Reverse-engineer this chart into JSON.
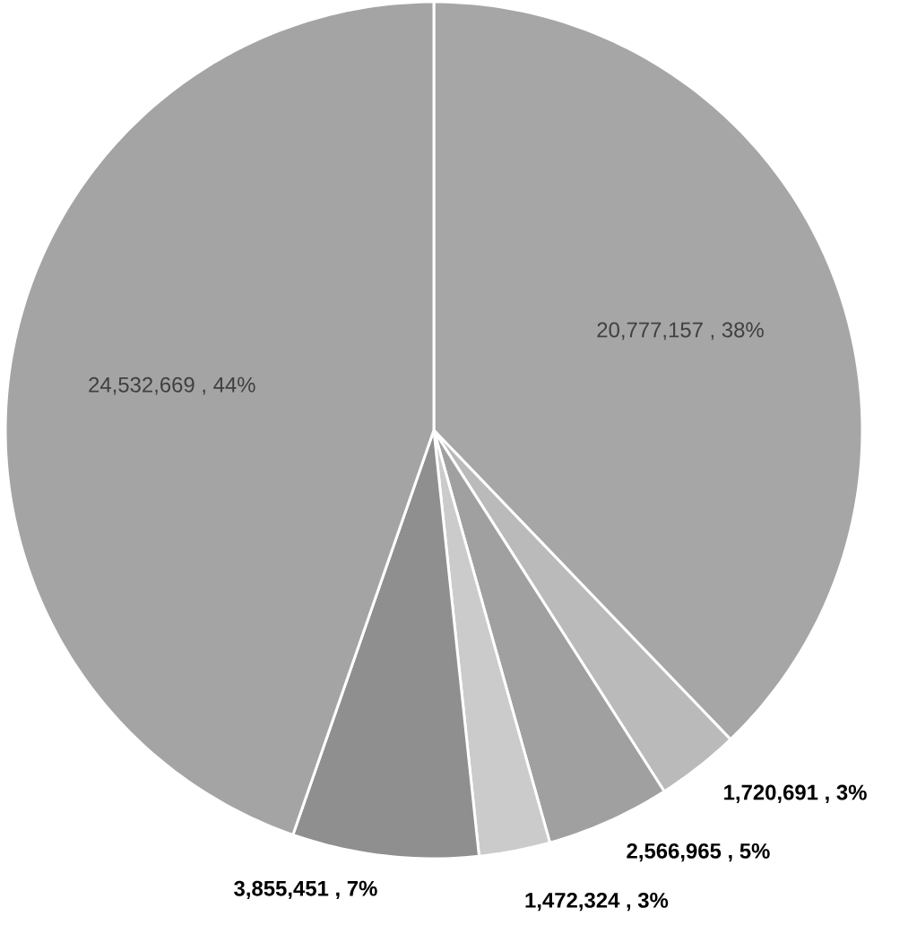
{
  "chart_data": {
    "type": "pie",
    "categories": [
      null,
      null,
      null,
      null,
      null,
      null
    ],
    "values": [
      20777157,
      1720691,
      2566965,
      1472324,
      3855451,
      24532669
    ],
    "colors": [
      "#a6a6a6",
      "#bababa",
      "#a0a0a0",
      "#cbcbcb",
      "#8f8f8f",
      "#a4a4a4"
    ],
    "value_labels": [
      "20,777,157 , 38%",
      "1,720,691 , 3%",
      "2,566,965 , 5%",
      "1,472,324 , 3%",
      "3,855,451 , 7%",
      "24,532,669 , 44%"
    ]
  }
}
